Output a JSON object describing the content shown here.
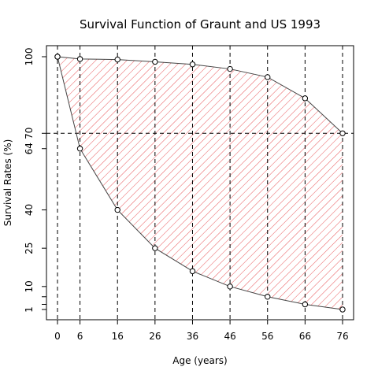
{
  "chart_data": {
    "type": "area",
    "title": "Survival Function of Graunt and US 1993",
    "xlabel": "Age (years)",
    "ylabel": "Survival Rates (%)",
    "x_ticks": [
      0,
      6,
      16,
      26,
      36,
      46,
      56,
      66,
      76
    ],
    "y_ticks": [
      1,
      3,
      6,
      10,
      25,
      40,
      64,
      70,
      100
    ],
    "y_tick_labels": [
      "1",
      "",
      "",
      "10",
      "25",
      "40",
      "64",
      "70",
      "100"
    ],
    "xlim": [
      0,
      76
    ],
    "ylim": [
      1,
      100
    ],
    "reference_line_y": 70,
    "fill_color": "#e8575a",
    "series": [
      {
        "x": [
          0,
          6,
          16,
          26,
          36,
          46,
          56,
          66,
          76
        ],
        "values": [
          100,
          99.1,
          98.9,
          98.0,
          97.0,
          95.2,
          92.0,
          83.7,
          70.0
        ]
      },
      {
        "x": [
          0,
          6,
          16,
          26,
          36,
          46,
          56,
          66,
          76
        ],
        "values": [
          100,
          64,
          40,
          25,
          16,
          10,
          6,
          3,
          1
        ]
      }
    ]
  }
}
